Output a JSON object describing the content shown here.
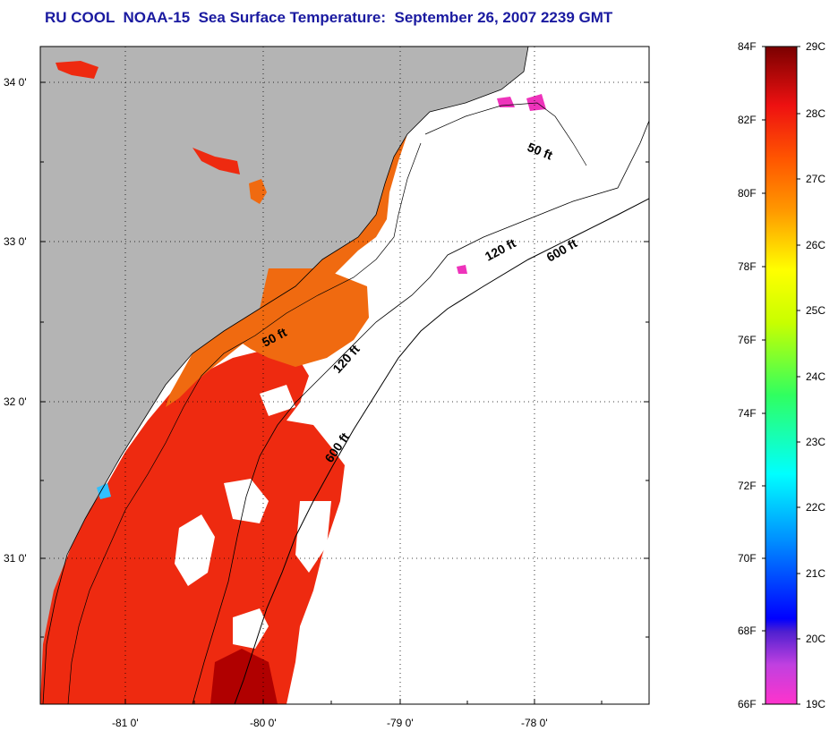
{
  "title": "RU COOL  NOAA-15  Sea Surface Temperature:  September 26, 2007 2239 GMT",
  "axes": {
    "y_labels": [
      "34 0'",
      "33 0'",
      "32 0'",
      "31 0'"
    ],
    "x_labels": [
      "-81 0'",
      "-80 0'",
      "-79 0'",
      "-78 0'"
    ]
  },
  "contours": [
    "50 ft",
    "120 ft",
    "600 ft",
    "50 ft",
    "120 ft",
    "600 ft"
  ],
  "colorbar": {
    "f_labels": [
      "84F",
      "82F",
      "80F",
      "78F",
      "76F",
      "74F",
      "72F",
      "70F",
      "68F",
      "66F"
    ],
    "c_labels": [
      "29C",
      "28C",
      "27C",
      "26C",
      "25C",
      "24C",
      "23C",
      "22C",
      "21C",
      "20C",
      "19C"
    ]
  },
  "colors": {
    "land": "#b4b4b4",
    "ocean_warm": "#ee2a10",
    "ocean_mid": "#f06a10",
    "title": "#1a1aa0"
  }
}
